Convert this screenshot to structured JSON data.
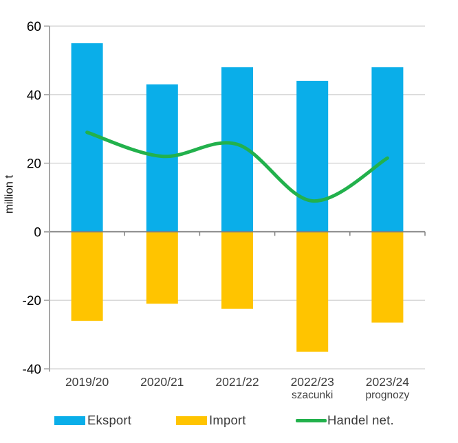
{
  "y_axis_title": "million t",
  "chart_data": {
    "type": "bar",
    "title": "",
    "categories": [
      "2019/20",
      "2020/21",
      "2021/22",
      "2022/23",
      "2023/24"
    ],
    "category_sublabels": [
      "",
      "",
      "",
      "szacunki",
      "prognozy"
    ],
    "series": [
      {
        "name": "Eksport",
        "type": "bar",
        "color": "#0AAEE9",
        "values": [
          55,
          43,
          48,
          44,
          48
        ]
      },
      {
        "name": "Import",
        "type": "bar",
        "color": "#FFC400",
        "values": [
          -26,
          -21,
          -22.5,
          -35,
          -26.5
        ]
      },
      {
        "name": "Handel net.",
        "type": "line",
        "color": "#22B14C",
        "values": [
          29,
          22,
          25.5,
          9,
          21.5
        ]
      }
    ],
    "xlabel": "",
    "ylabel": "million t",
    "ylim": [
      -40,
      60
    ],
    "ytick_step": 20,
    "grid": true,
    "legend_position": "bottom",
    "colors": {
      "gridline": "#D9D9D9",
      "zero_line": "#808080",
      "axis": "#A6A6A6",
      "y_tick_text": "#000000",
      "x_tick_text": "#3F3F3F"
    }
  }
}
